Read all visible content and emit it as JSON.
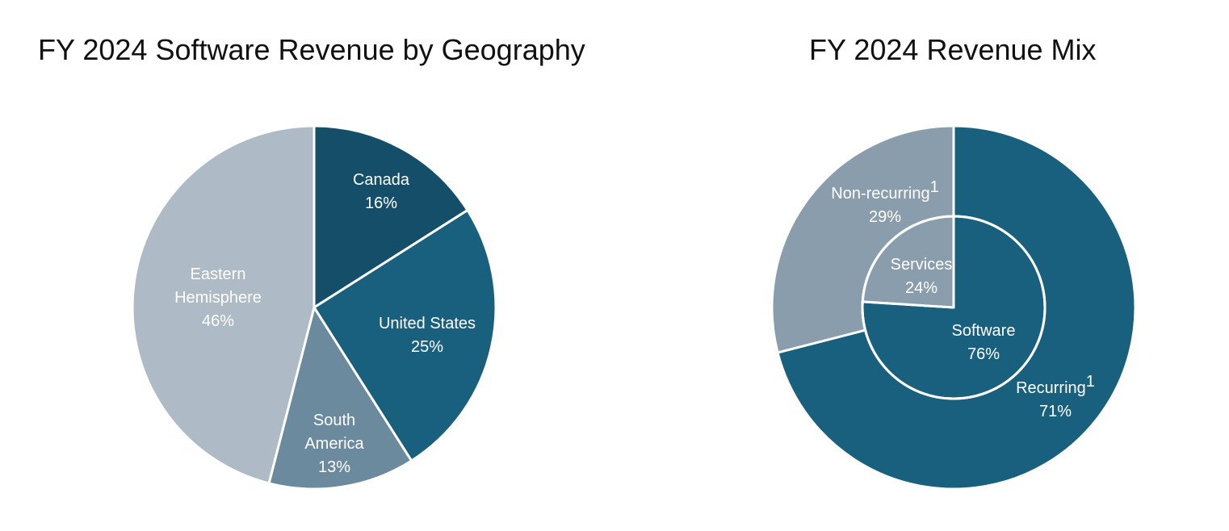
{
  "chart_data": [
    {
      "type": "pie",
      "title": "FY 2024 Software Revenue by Geography",
      "slices": [
        {
          "label": "Canada",
          "value": 16,
          "value_label": "16%",
          "color": "#154E68"
        },
        {
          "label": "United States",
          "value": 25,
          "value_label": "25%",
          "color": "#19607F"
        },
        {
          "label": "South America",
          "value": 13,
          "value_label": "13%",
          "color": "#6B8A9E"
        },
        {
          "label": "Eastern Hemisphere",
          "value": 46,
          "value_label": "46%",
          "color": "#AEBAC5"
        }
      ]
    },
    {
      "type": "pie",
      "title": "FY 2024 Revenue Mix",
      "rings": [
        {
          "ring": "outer",
          "slices": [
            {
              "label": "Recurring",
              "superscript": "1",
              "value": 71,
              "value_label": "71%",
              "color": "#19607F"
            },
            {
              "label": "Non-recurring",
              "superscript": "1",
              "value": 29,
              "value_label": "29%",
              "color": "#899DAD"
            }
          ]
        },
        {
          "ring": "inner",
          "slices": [
            {
              "label": "Software",
              "value": 76,
              "value_label": "76%",
              "color": "#19607F"
            },
            {
              "label": "Services",
              "value": 24,
              "value_label": "24%",
              "color": "#899DAD"
            }
          ]
        }
      ]
    }
  ]
}
